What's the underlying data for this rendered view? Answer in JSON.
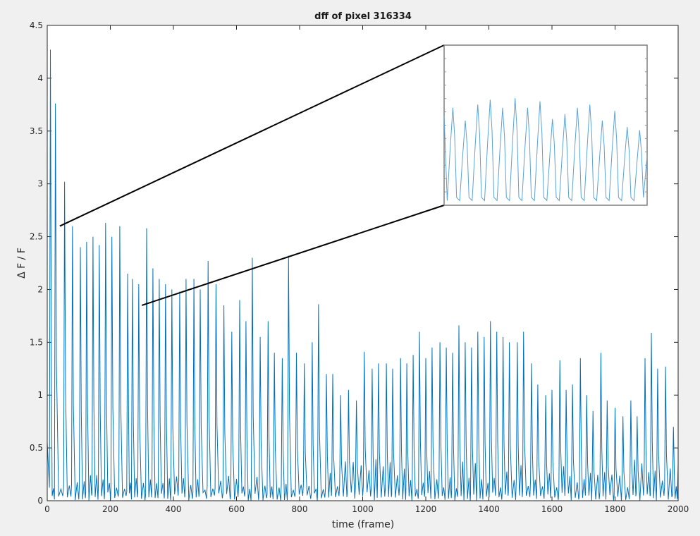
{
  "figure": {
    "background": "#f0f0f0",
    "axes_background": "#ffffff",
    "line_color": "#0072bd",
    "inset_line_color": "#5aa2d8"
  },
  "chart_data": {
    "type": "line",
    "title": "dff of pixel 316334",
    "xlabel": "time (frame)",
    "ylabel": "Δ F / F",
    "xlim": [
      0,
      2000
    ],
    "ylim": [
      0,
      4.5
    ],
    "xticks": [
      "0",
      "200",
      "400",
      "600",
      "800",
      "1000",
      "1200",
      "1400",
      "1600",
      "1800",
      "2000"
    ],
    "yticks": [
      "0",
      "0.5",
      "1",
      "1.5",
      "2",
      "2.5",
      "3",
      "3.5",
      "4",
      "4.5"
    ],
    "grid": false,
    "legend": "none",
    "series": [
      {
        "peak_frames": [
          10,
          26,
          55,
          80,
          105,
          125,
          145,
          165,
          185,
          205,
          230,
          255,
          270,
          290,
          315,
          335,
          355,
          375,
          395,
          420,
          440,
          465,
          485,
          510,
          535,
          560,
          585,
          610,
          630,
          650,
          675,
          700,
          720,
          745,
          765,
          790,
          815,
          840,
          860,
          885,
          905,
          930,
          955,
          980,
          1005,
          1030,
          1050,
          1075,
          1095,
          1120,
          1140,
          1160,
          1180,
          1200,
          1220,
          1245,
          1265,
          1285,
          1305,
          1325,
          1345,
          1365,
          1385,
          1405,
          1425,
          1445,
          1465,
          1490,
          1510,
          1535,
          1555,
          1580,
          1600,
          1625,
          1645,
          1665,
          1690,
          1710,
          1730,
          1755,
          1775,
          1800,
          1825,
          1850,
          1870,
          1895,
          1915,
          1935,
          1960,
          1985
        ],
        "peak_values": [
          4.27,
          3.76,
          3.02,
          2.6,
          2.4,
          2.45,
          2.5,
          2.42,
          2.63,
          2.5,
          2.6,
          2.15,
          2.1,
          2.05,
          2.58,
          2.2,
          2.1,
          2.05,
          2.0,
          1.98,
          2.1,
          2.1,
          2.0,
          2.27,
          2.05,
          1.85,
          1.6,
          1.9,
          1.7,
          2.3,
          1.55,
          1.7,
          1.4,
          1.35,
          2.32,
          1.4,
          1.3,
          1.5,
          1.86,
          1.2,
          1.2,
          1.0,
          1.05,
          0.95,
          1.41,
          1.25,
          1.3,
          1.3,
          1.25,
          1.35,
          1.3,
          1.38,
          1.6,
          1.35,
          1.45,
          1.5,
          1.45,
          1.4,
          1.66,
          1.5,
          1.45,
          1.6,
          1.55,
          1.7,
          1.6,
          1.55,
          1.5,
          1.5,
          1.6,
          1.3,
          1.1,
          1.0,
          1.05,
          1.33,
          1.05,
          1.1,
          1.35,
          1.0,
          0.85,
          1.4,
          0.95,
          0.88,
          0.8,
          0.95,
          0.8,
          1.35,
          1.59,
          1.25,
          1.27,
          0.7
        ],
        "description_note": ""
      }
    ],
    "zoom_source": {
      "x": [
        40,
        300
      ],
      "y": [
        1.85,
        2.6
      ]
    },
    "inset": {
      "peak_count": 16,
      "peak_values": [
        0.6,
        0.52,
        0.62,
        0.65,
        0.6,
        0.66,
        0.6,
        0.64,
        0.53,
        0.56,
        0.6,
        0.62,
        0.52,
        0.58,
        0.48,
        0.46
      ],
      "baseline": 0.02
    }
  }
}
